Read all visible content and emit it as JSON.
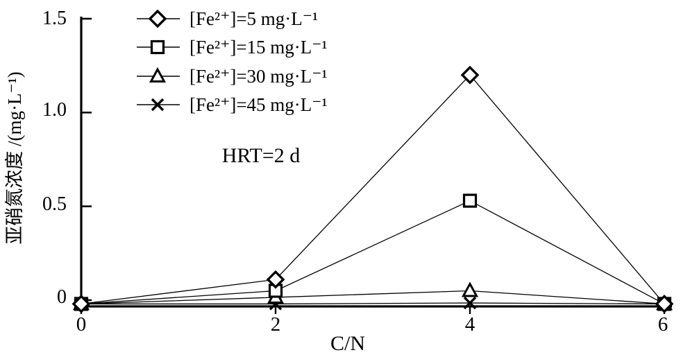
{
  "figure": {
    "background_color": "#ffffff",
    "ink_color": "#000000"
  },
  "chart_data": {
    "type": "line",
    "title": "",
    "xlabel": "C/N",
    "ylabel": "亚硝氮浓度 /(mg·L⁻¹)",
    "annotation": "HRT=2 d",
    "x": [
      0,
      2,
      4,
      6
    ],
    "xlim": [
      0,
      6.08
    ],
    "ylim": [
      -0.037,
      1.5
    ],
    "xticks": [
      0,
      2,
      4,
      6
    ],
    "xticklabels": [
      "0",
      "2",
      "4",
      "6"
    ],
    "yticks": [
      0,
      0.5,
      1.0,
      1.5
    ],
    "yticklabels": [
      "1.5",
      "1.0",
      "0.5",
      "0"
    ],
    "grid": false,
    "legend_position": "upper-left-inside",
    "series": [
      {
        "name": "fe5",
        "label": "[Fe²⁺]=5 mg·L⁻¹",
        "marker": "diamond",
        "values": [
          -0.02,
          0.11,
          1.2,
          -0.02
        ]
      },
      {
        "name": "fe15",
        "label": "[Fe²⁺]=15 mg·L⁻¹",
        "marker": "square",
        "values": [
          -0.02,
          0.05,
          0.53,
          -0.02
        ]
      },
      {
        "name": "fe30",
        "label": "[Fe²⁺]=30 mg·L⁻¹",
        "marker": "triangle",
        "values": [
          -0.02,
          0.015,
          0.05,
          -0.02
        ]
      },
      {
        "name": "fe45",
        "label": "[Fe²⁺]=45 mg·L⁻¹",
        "marker": "x",
        "values": [
          -0.02,
          -0.02,
          -0.015,
          -0.02
        ]
      }
    ]
  }
}
